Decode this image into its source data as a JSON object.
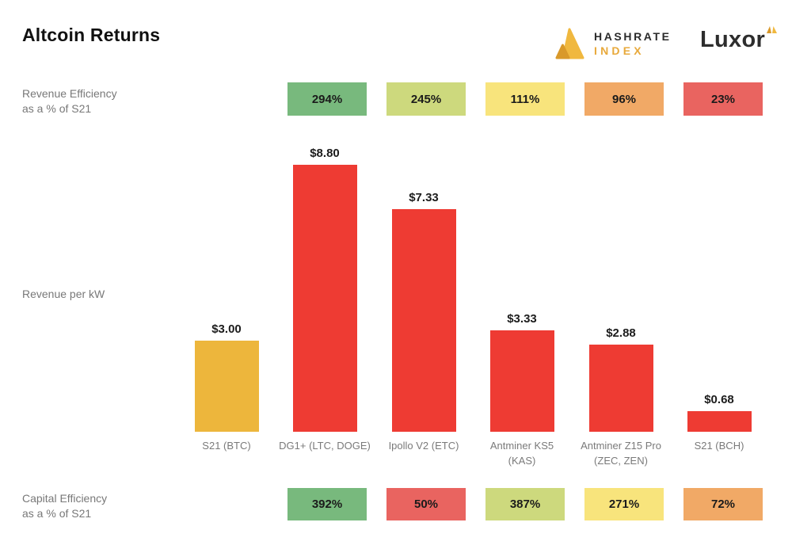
{
  "title": "Altcoin Returns",
  "logos": {
    "hashrate_index": {
      "word1": "HASHRATE",
      "word2": "INDEX"
    },
    "luxor": "Luxor"
  },
  "colors": {
    "green": "#78b97d",
    "yellow_green": "#cdd97d",
    "yellow": "#f8e47c",
    "orange": "#f1a966",
    "red_badge": "#e96460",
    "red_bar": "#ee3b33",
    "gold_bar": "#edb63c",
    "logo_gold": "#f0b83f",
    "logo_gold_dark": "#d9992a"
  },
  "rows": {
    "revenue_efficiency": {
      "label": "Revenue Efficiency",
      "sublabel": "as a % of S21"
    },
    "capital_efficiency": {
      "label": "Capital Efficiency",
      "sublabel": "as a % of S21"
    }
  },
  "chart_data": {
    "type": "bar",
    "title": "Altcoin Returns",
    "ylabel": "Revenue per kW",
    "xlabel": "",
    "ylim": [
      0,
      9.5
    ],
    "grid": false,
    "legend": "none",
    "categories": [
      "S21 (BTC)",
      "DG1+ (LTC, DOGE)",
      "Ipollo V2 (ETC)",
      "Antminer KS5 (KAS)",
      "Antminer Z15 Pro (ZEC, ZEN)",
      "S21 (BCH)"
    ],
    "values": [
      3.0,
      8.8,
      7.33,
      3.33,
      2.88,
      0.68
    ],
    "bars": [
      {
        "name": "S21 (BTC)",
        "sub": "",
        "value": 3.0,
        "label": "$3.00",
        "color": "#edb63c"
      },
      {
        "name": "DG1+ (LTC, DOGE)",
        "sub": "",
        "value": 8.8,
        "label": "$8.80",
        "color": "#ee3b33"
      },
      {
        "name": "Ipollo V2 (ETC)",
        "sub": "",
        "value": 7.33,
        "label": "$7.33",
        "color": "#ee3b33"
      },
      {
        "name": "Antminer KS5",
        "sub": "(KAS)",
        "value": 3.33,
        "label": "$3.33",
        "color": "#ee3b33"
      },
      {
        "name": "Antminer Z15 Pro",
        "sub": "(ZEC, ZEN)",
        "value": 2.88,
        "label": "$2.88",
        "color": "#ee3b33"
      },
      {
        "name": "S21 (BCH)",
        "sub": "",
        "value": 0.68,
        "label": "$0.68",
        "color": "#ee3b33"
      }
    ],
    "revenue_efficiency_badges": [
      {
        "value": 294,
        "label": "294%",
        "color": "#78b97d"
      },
      {
        "value": 245,
        "label": "245%",
        "color": "#cdd97d"
      },
      {
        "value": 111,
        "label": "111%",
        "color": "#f8e47c"
      },
      {
        "value": 96,
        "label": "96%",
        "color": "#f1a966"
      },
      {
        "value": 23,
        "label": "23%",
        "color": "#e96460"
      }
    ],
    "capital_efficiency_badges": [
      {
        "value": 392,
        "label": "392%",
        "color": "#78b97d"
      },
      {
        "value": 50,
        "label": "50%",
        "color": "#e96460"
      },
      {
        "value": 387,
        "label": "387%",
        "color": "#cdd97d"
      },
      {
        "value": 271,
        "label": "271%",
        "color": "#f8e47c"
      },
      {
        "value": 72,
        "label": "72%",
        "color": "#f1a966"
      }
    ]
  }
}
